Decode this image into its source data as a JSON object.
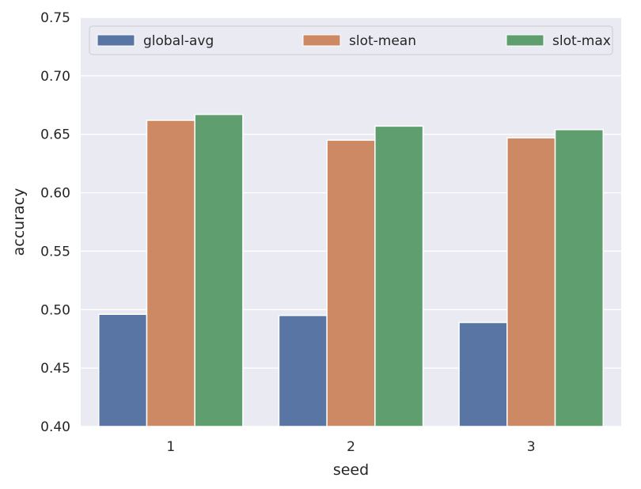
{
  "chart_data": {
    "type": "bar",
    "xlabel": "seed",
    "ylabel": "accuracy",
    "categories": [
      "1",
      "2",
      "3"
    ],
    "ylim": [
      0.4,
      0.75
    ],
    "yticks": [
      0.4,
      0.45,
      0.5,
      0.55,
      0.6,
      0.65,
      0.7,
      0.75
    ],
    "ytick_labels": [
      "0.40",
      "0.45",
      "0.50",
      "0.55",
      "0.60",
      "0.65",
      "0.70",
      "0.75"
    ],
    "series": [
      {
        "name": "global-avg",
        "color": "#5875a4",
        "values": [
          0.496,
          0.495,
          0.489
        ]
      },
      {
        "name": "slot-mean",
        "color": "#cc8963",
        "values": [
          0.662,
          0.645,
          0.647
        ]
      },
      {
        "name": "slot-max",
        "color": "#5f9e6e",
        "values": [
          0.667,
          0.657,
          0.654
        ]
      }
    ],
    "grid": true,
    "background": "#eaeaf2",
    "legend_position": "top"
  }
}
